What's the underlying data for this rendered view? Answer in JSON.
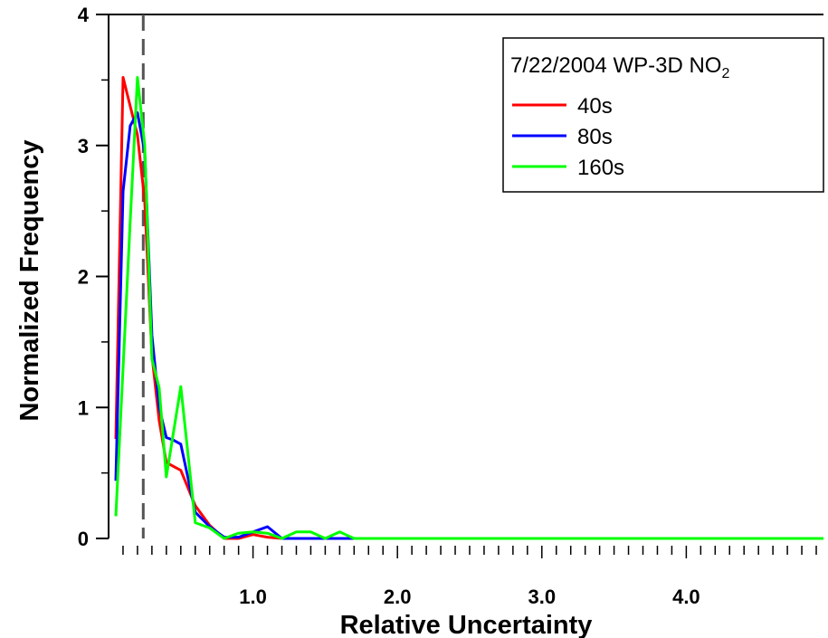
{
  "chart_data": {
    "type": "line",
    "title": "",
    "xlabel": "Relative Uncertainty",
    "ylabel": "Normalized Frequency",
    "xlim": [
      0.0,
      4.95
    ],
    "ylim": [
      0,
      4
    ],
    "x_ticks": [
      1.0,
      2.0,
      3.0,
      4.0
    ],
    "x_tick_labels": [
      "1.0",
      "2.0",
      "3.0",
      "4.0"
    ],
    "y_ticks": [
      0,
      1,
      2,
      3,
      4
    ],
    "y_tick_labels": [
      "0",
      "1",
      "2",
      "3",
      "4"
    ],
    "grid": false,
    "legend": {
      "position": "top-right",
      "title": "7/22/2004 WP-3D NO",
      "title_subscript": "2"
    },
    "reference_line": {
      "x": 0.24,
      "style": "dashed"
    },
    "series": [
      {
        "name": "40s",
        "color": "#ff0000",
        "points": [
          [
            0.05,
            0.76
          ],
          [
            0.1,
            3.52
          ],
          [
            0.15,
            3.3
          ],
          [
            0.2,
            3.08
          ],
          [
            0.25,
            2.58
          ],
          [
            0.3,
            1.4
          ],
          [
            0.35,
            0.9
          ],
          [
            0.4,
            0.58
          ],
          [
            0.45,
            0.55
          ],
          [
            0.5,
            0.52
          ],
          [
            0.6,
            0.25
          ],
          [
            0.7,
            0.1
          ],
          [
            0.8,
            0.0
          ],
          [
            0.9,
            0.0
          ],
          [
            1.0,
            0.03
          ],
          [
            1.1,
            0.01
          ],
          [
            1.2,
            0.0
          ],
          [
            4.95,
            0.0
          ]
        ]
      },
      {
        "name": "80s",
        "color": "#0000ff",
        "points": [
          [
            0.05,
            0.44
          ],
          [
            0.1,
            2.65
          ],
          [
            0.15,
            3.15
          ],
          [
            0.2,
            3.25
          ],
          [
            0.25,
            2.95
          ],
          [
            0.3,
            1.55
          ],
          [
            0.35,
            1.0
          ],
          [
            0.4,
            0.77
          ],
          [
            0.45,
            0.75
          ],
          [
            0.5,
            0.72
          ],
          [
            0.6,
            0.2
          ],
          [
            0.7,
            0.09
          ],
          [
            0.8,
            0.01
          ],
          [
            0.9,
            0.01
          ],
          [
            1.0,
            0.05
          ],
          [
            1.1,
            0.09
          ],
          [
            1.2,
            0.0
          ],
          [
            4.95,
            0.0
          ]
        ]
      },
      {
        "name": "160s",
        "color": "#00ff00",
        "points": [
          [
            0.05,
            0.17
          ],
          [
            0.15,
            2.42
          ],
          [
            0.2,
            3.52
          ],
          [
            0.25,
            3.0
          ],
          [
            0.3,
            1.37
          ],
          [
            0.35,
            1.15
          ],
          [
            0.4,
            0.47
          ],
          [
            0.5,
            1.16
          ],
          [
            0.6,
            0.12
          ],
          [
            0.7,
            0.08
          ],
          [
            0.8,
            0.0
          ],
          [
            0.9,
            0.04
          ],
          [
            1.0,
            0.05
          ],
          [
            1.1,
            0.04
          ],
          [
            1.2,
            0.0
          ],
          [
            1.3,
            0.05
          ],
          [
            1.4,
            0.05
          ],
          [
            1.5,
            0.0
          ],
          [
            1.6,
            0.05
          ],
          [
            1.7,
            0.0
          ],
          [
            4.95,
            0.0
          ]
        ]
      }
    ]
  }
}
